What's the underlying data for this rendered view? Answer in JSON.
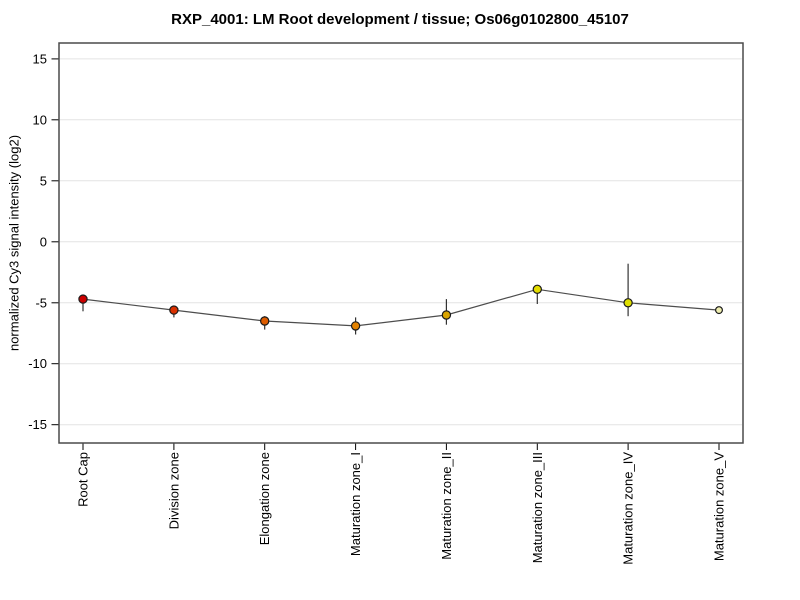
{
  "title": "RXP_4001: LM Root development / tissue; Os06g0102800_45107",
  "chart_data": {
    "type": "line",
    "title": "RXP_4001: LM Root development / tissue; Os06g0102800_45107",
    "xlabel": "",
    "ylabel": "normalized Cy3 signal intensity (log2)",
    "ylim": [
      -16.5,
      16.3
    ],
    "yticks": [
      -15,
      -10,
      -5,
      0,
      5,
      10,
      15
    ],
    "grid": true,
    "legend": "none",
    "categories": [
      "Root Cap",
      "Division zone",
      "Elongation zone",
      "Maturation zone_I",
      "Maturation zone_II",
      "Maturation zone_III",
      "Maturation zone_IV",
      "Maturation zone_V"
    ],
    "series": [
      {
        "name": "normalized Cy3 signal intensity",
        "values": [
          -4.7,
          -5.6,
          -6.5,
          -6.9,
          -6.0,
          -3.9,
          -5.0,
          -5.6
        ],
        "error_low": [
          -5.7,
          -6.2,
          -7.2,
          -7.6,
          -6.8,
          -5.1,
          -6.1,
          -5.8
        ],
        "error_high": [
          -4.5,
          -5.3,
          -6.1,
          -6.2,
          -4.7,
          -3.8,
          -1.8,
          -5.5
        ],
        "point_colors": [
          "#cc0000",
          "#d93000",
          "#dd5c00",
          "#e38200",
          "#d9a400",
          "#e3dc00",
          "#dfdf00",
          "#eeedb0"
        ],
        "point_radii": [
          4.1,
          4.1,
          4.1,
          4.1,
          4.1,
          4.1,
          4.1,
          3.4
        ],
        "line_color": "#4d4d4d"
      }
    ],
    "colors": {
      "plot_border": "#4a4a4a",
      "gridline": "#e4e4e4",
      "error_bar": "#333333",
      "tick": "#000000",
      "marker_outline": "#1a1a1a",
      "background": "#ffffff"
    }
  }
}
